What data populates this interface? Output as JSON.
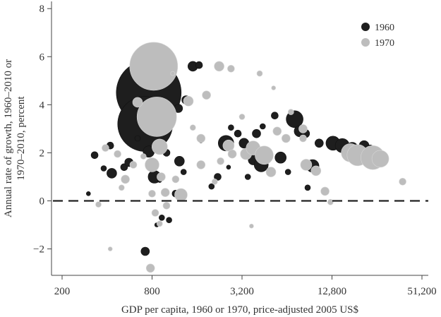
{
  "chart_data": {
    "type": "scatter",
    "xlabel": "GDP per capita, 1960 or 1970, price-adjusted 2005 US$",
    "ylabel_line1": "Annual rate of growth, 1960–2010 or",
    "ylabel_line2": "1970–2010, percent",
    "x_scale": "log2",
    "xlim": [
      200,
      51200
    ],
    "ylim": [
      -3.1,
      8.3
    ],
    "x_ticks": [
      200,
      800,
      3200,
      12800,
      51200
    ],
    "x_tick_labels": [
      "200",
      "800",
      "3,200",
      "12,800",
      "51,200"
    ],
    "y_ticks": [
      -2,
      0,
      2,
      4,
      6,
      8
    ],
    "y_tick_labels": [
      "−2",
      "0",
      "2",
      "4",
      "6",
      "8"
    ],
    "reference_line": {
      "y": 0,
      "style": "dashed"
    },
    "legend_position": "top-right",
    "series": [
      {
        "name": "1960",
        "color": "#1e1e1e",
        "points": [
          {
            "x": 760,
            "y": 4.5,
            "size": 46
          },
          {
            "x": 720,
            "y": 3.2,
            "size": 39
          },
          {
            "x": 720,
            "y": 5.6,
            "size": 6
          },
          {
            "x": 760,
            "y": 2.05,
            "size": 8
          },
          {
            "x": 830,
            "y": 1.0,
            "size": 9
          },
          {
            "x": 1000,
            "y": 2.0,
            "size": 5
          },
          {
            "x": 1200,
            "y": 3.85,
            "size": 6
          },
          {
            "x": 1350,
            "y": 4.2,
            "size": 6
          },
          {
            "x": 1500,
            "y": 5.6,
            "size": 7
          },
          {
            "x": 1650,
            "y": 5.65,
            "size": 5
          },
          {
            "x": 2500,
            "y": 2.4,
            "size": 11
          },
          {
            "x": 2700,
            "y": 3.05,
            "size": 4
          },
          {
            "x": 3000,
            "y": 2.8,
            "size": 5
          },
          {
            "x": 3300,
            "y": 2.4,
            "size": 7
          },
          {
            "x": 3800,
            "y": 1.7,
            "size": 7
          },
          {
            "x": 4000,
            "y": 2.8,
            "size": 6
          },
          {
            "x": 4300,
            "y": 1.5,
            "size": 10
          },
          {
            "x": 4400,
            "y": 3.1,
            "size": 4
          },
          {
            "x": 5300,
            "y": 3.55,
            "size": 5
          },
          {
            "x": 5800,
            "y": 1.8,
            "size": 8
          },
          {
            "x": 7200,
            "y": 3.4,
            "size": 12
          },
          {
            "x": 7800,
            "y": 2.9,
            "size": 8
          },
          {
            "x": 8500,
            "y": 2.8,
            "size": 6
          },
          {
            "x": 9500,
            "y": 1.45,
            "size": 9
          },
          {
            "x": 10500,
            "y": 2.4,
            "size": 6
          },
          {
            "x": 13000,
            "y": 2.4,
            "size": 10
          },
          {
            "x": 15000,
            "y": 2.3,
            "size": 10
          },
          {
            "x": 17500,
            "y": 2.2,
            "size": 8
          },
          {
            "x": 21000,
            "y": 2.3,
            "size": 7
          },
          {
            "x": 23000,
            "y": 2.15,
            "size": 6
          },
          {
            "x": 330,
            "y": 1.9,
            "size": 5
          },
          {
            "x": 380,
            "y": 1.35,
            "size": 4
          },
          {
            "x": 420,
            "y": 2.3,
            "size": 5
          },
          {
            "x": 430,
            "y": 1.15,
            "size": 7
          },
          {
            "x": 520,
            "y": 1.4,
            "size": 5
          },
          {
            "x": 560,
            "y": 1.6,
            "size": 6
          },
          {
            "x": 640,
            "y": 2.6,
            "size": 4
          },
          {
            "x": 720,
            "y": -2.1,
            "size": 6
          },
          {
            "x": 860,
            "y": -1.0,
            "size": 3
          },
          {
            "x": 930,
            "y": -0.7,
            "size": 4
          },
          {
            "x": 1040,
            "y": -0.8,
            "size": 4
          },
          {
            "x": 1150,
            "y": 0.3,
            "size": 5
          },
          {
            "x": 1220,
            "y": 1.65,
            "size": 7
          },
          {
            "x": 1300,
            "y": 1.2,
            "size": 4
          },
          {
            "x": 2000,
            "y": 0.6,
            "size": 4
          },
          {
            "x": 2200,
            "y": 1.0,
            "size": 5
          },
          {
            "x": 3500,
            "y": 1.0,
            "size": 4
          },
          {
            "x": 6500,
            "y": 1.2,
            "size": 4
          },
          {
            "x": 8800,
            "y": 0.55,
            "size": 4
          },
          {
            "x": 900,
            "y": 0.85,
            "size": 3
          },
          {
            "x": 300,
            "y": 0.3,
            "size": 3
          },
          {
            "x": 1700,
            "y": 2.5,
            "size": 3
          },
          {
            "x": 2600,
            "y": 1.4,
            "size": 3
          },
          {
            "x": 4700,
            "y": 2.0,
            "size": 4
          }
        ]
      },
      {
        "name": "1970",
        "color": "#bdbdbd",
        "points": [
          {
            "x": 820,
            "y": 5.6,
            "size": 34
          },
          {
            "x": 860,
            "y": 3.5,
            "size": 28
          },
          {
            "x": 900,
            "y": 2.25,
            "size": 11
          },
          {
            "x": 800,
            "y": 1.5,
            "size": 10
          },
          {
            "x": 920,
            "y": 1.0,
            "size": 6
          },
          {
            "x": 640,
            "y": 4.1,
            "size": 7
          },
          {
            "x": 1400,
            "y": 4.15,
            "size": 7
          },
          {
            "x": 1700,
            "y": 2.6,
            "size": 6
          },
          {
            "x": 1850,
            "y": 4.4,
            "size": 6
          },
          {
            "x": 2250,
            "y": 5.6,
            "size": 7
          },
          {
            "x": 2700,
            "y": 5.5,
            "size": 5
          },
          {
            "x": 2300,
            "y": 1.65,
            "size": 5
          },
          {
            "x": 2600,
            "y": 2.3,
            "size": 8
          },
          {
            "x": 2750,
            "y": 1.95,
            "size": 6
          },
          {
            "x": 3400,
            "y": 1.95,
            "size": 8
          },
          {
            "x": 3800,
            "y": 2.2,
            "size": 10
          },
          {
            "x": 4500,
            "y": 1.9,
            "size": 13
          },
          {
            "x": 5000,
            "y": 1.2,
            "size": 7
          },
          {
            "x": 5500,
            "y": 2.9,
            "size": 6
          },
          {
            "x": 6300,
            "y": 2.6,
            "size": 6
          },
          {
            "x": 8200,
            "y": 3.0,
            "size": 6
          },
          {
            "x": 8200,
            "y": 2.6,
            "size": 5
          },
          {
            "x": 8600,
            "y": 1.5,
            "size": 8
          },
          {
            "x": 10000,
            "y": 1.25,
            "size": 7
          },
          {
            "x": 11500,
            "y": 0.4,
            "size": 6
          },
          {
            "x": 17000,
            "y": 2.0,
            "size": 13
          },
          {
            "x": 19000,
            "y": 1.9,
            "size": 15
          },
          {
            "x": 24000,
            "y": 1.8,
            "size": 17
          },
          {
            "x": 27000,
            "y": 1.75,
            "size": 12
          },
          {
            "x": 390,
            "y": 2.2,
            "size": 5
          },
          {
            "x": 470,
            "y": 1.95,
            "size": 5
          },
          {
            "x": 530,
            "y": 0.9,
            "size": 6
          },
          {
            "x": 600,
            "y": 1.5,
            "size": 5
          },
          {
            "x": 700,
            "y": 1.85,
            "size": 4
          },
          {
            "x": 800,
            "y": 0.3,
            "size": 5
          },
          {
            "x": 840,
            "y": -0.5,
            "size": 5
          },
          {
            "x": 980,
            "y": 0.35,
            "size": 6
          },
          {
            "x": 1000,
            "y": -0.2,
            "size": 5
          },
          {
            "x": 1150,
            "y": 0.9,
            "size": 5
          },
          {
            "x": 1250,
            "y": 0.25,
            "size": 9
          },
          {
            "x": 1700,
            "y": 1.5,
            "size": 6
          },
          {
            "x": 780,
            "y": -2.8,
            "size": 6
          },
          {
            "x": 900,
            "y": -0.95,
            "size": 4
          },
          {
            "x": 420,
            "y": -2.0,
            "size": 3
          },
          {
            "x": 350,
            "y": -0.15,
            "size": 4
          },
          {
            "x": 500,
            "y": 0.55,
            "size": 4
          },
          {
            "x": 3700,
            "y": -1.05,
            "size": 3
          },
          {
            "x": 12500,
            "y": -0.05,
            "size": 4
          },
          {
            "x": 38000,
            "y": 0.8,
            "size": 5
          },
          {
            "x": 3200,
            "y": 3.5,
            "size": 4
          },
          {
            "x": 4200,
            "y": 5.3,
            "size": 4
          },
          {
            "x": 5200,
            "y": 4.7,
            "size": 3
          },
          {
            "x": 6800,
            "y": 3.7,
            "size": 4
          },
          {
            "x": 1100,
            "y": 5.3,
            "size": 3
          },
          {
            "x": 2100,
            "y": 0.8,
            "size": 4
          },
          {
            "x": 1500,
            "y": 3.05,
            "size": 4
          }
        ]
      }
    ]
  }
}
